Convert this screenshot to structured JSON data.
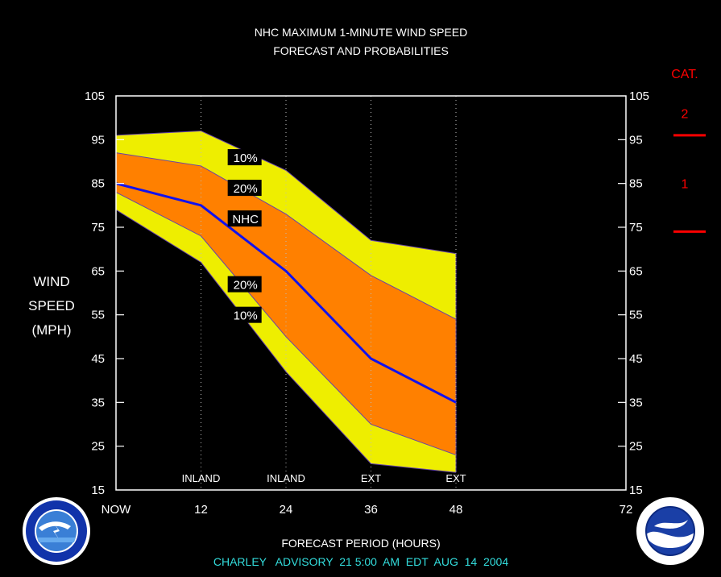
{
  "title_line1": "NHC MAXIMUM 1-MINUTE WIND SPEED",
  "title_line2": "FORECAST AND PROBABILITIES",
  "footer": "CHARLEY   ADVISORY  21 5:00  AM  EDT  AUG  14  2004",
  "colors": {
    "outer_band": "#eeee00",
    "inner_band": "#ff8000",
    "forecast_line": "#1111ee",
    "category": "#ff0000",
    "footer": "#33dddd"
  },
  "chart_data": {
    "type": "area",
    "x": [
      0,
      12,
      24,
      36,
      48
    ],
    "x_tick_values": [
      0,
      12,
      24,
      36,
      48,
      72
    ],
    "x_tick_labels": [
      "NOW",
      "12",
      "24",
      "36",
      "48",
      "72"
    ],
    "xlim": [
      0,
      72
    ],
    "ylim": [
      15,
      105
    ],
    "y_ticks": [
      15,
      25,
      35,
      45,
      55,
      65,
      75,
      85,
      95,
      105
    ],
    "xlabel": "FORECAST PERIOD (HOURS)",
    "ylabel": [
      "WIND",
      "SPEED",
      "(MPH)"
    ],
    "series": [
      {
        "name": "10%",
        "values": [
          96,
          97,
          88,
          72,
          69
        ]
      },
      {
        "name": "20%",
        "values": [
          92,
          89,
          78,
          64,
          54
        ]
      },
      {
        "name": "NHC",
        "values": [
          85,
          80,
          65,
          45,
          35
        ]
      },
      {
        "name": "20%",
        "values": [
          83,
          73,
          50,
          30,
          23
        ]
      },
      {
        "name": "10%",
        "values": [
          79,
          67,
          42,
          21,
          19
        ]
      }
    ],
    "series_labels": [
      {
        "text": "10%",
        "x": 16,
        "y": 91
      },
      {
        "text": "20%",
        "x": 16,
        "y": 84
      },
      {
        "text": "NHC",
        "x": 16,
        "y": 77
      },
      {
        "text": "20%",
        "x": 16,
        "y": 62
      },
      {
        "text": "10%",
        "x": 16,
        "y": 55
      }
    ],
    "markers": [
      {
        "x": 12,
        "label": "INLAND"
      },
      {
        "x": 24,
        "label": "INLAND"
      },
      {
        "x": 36,
        "label": "EXT"
      },
      {
        "x": 48,
        "label": "EXT"
      }
    ],
    "category": {
      "title": "CAT.",
      "thresholds": [
        74,
        96
      ],
      "labels": [
        {
          "text": "2",
          "y": 101
        },
        {
          "text": "1",
          "y": 85
        }
      ]
    }
  }
}
